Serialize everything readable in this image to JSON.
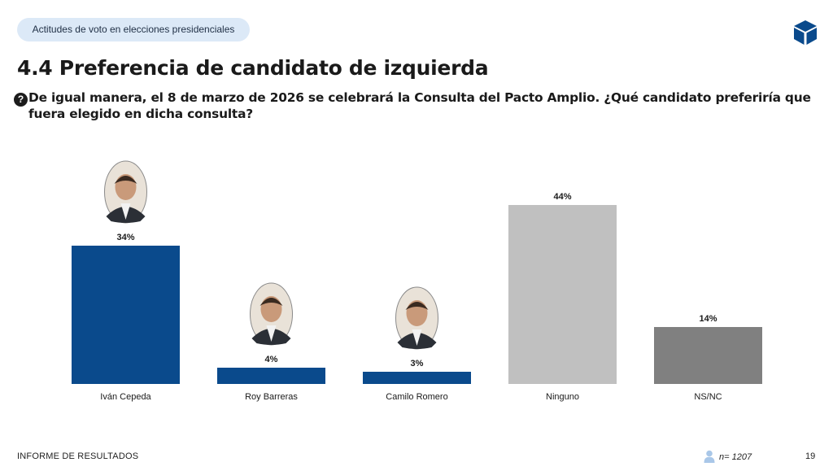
{
  "header": {
    "section_pill": "Actitudes de voto en elecciones presidenciales",
    "title": "4.4 Preferencia de candidato de izquierda",
    "question_icon": "?",
    "question": "De igual manera, el 8 de marzo de 2026 se celebrará la Consulta del Pacto Amplio. ¿Qué candidato preferiría que fuera elegido en dicha consulta?"
  },
  "logo": {
    "icon": "cube-logo-icon",
    "color": "#0a4a8c"
  },
  "chart_data": {
    "type": "bar",
    "categories": [
      "Iván Cepeda",
      "Roy Barreras",
      "Camilo Romero",
      "Ninguno",
      "NS/NC"
    ],
    "values": [
      34,
      4,
      3,
      44,
      14
    ],
    "data_labels": [
      "34%",
      "4%",
      "3%",
      "44%",
      "14%"
    ],
    "colors": [
      "#0a4a8c",
      "#0a4a8c",
      "#0a4a8c",
      "#c0c0c0",
      "#808080"
    ],
    "photos": [
      "candidate-photo",
      "candidate-photo",
      "candidate-photo",
      null,
      null
    ],
    "grid": false,
    "legend": "none"
  },
  "footer": {
    "left": "INFORME DE RESULTADOS",
    "sample_icon": "person-icon",
    "sample": "n= 1207",
    "page": "19"
  }
}
